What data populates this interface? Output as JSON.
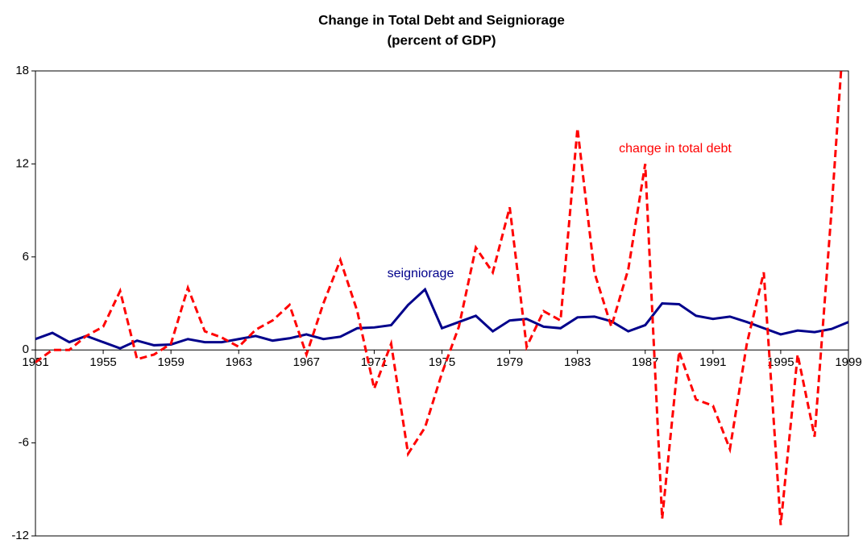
{
  "chart_data": {
    "type": "line",
    "title": "Change in Total Debt and Seigniorage",
    "subtitle": "(percent of GDP)",
    "x": [
      1951,
      1952,
      1953,
      1954,
      1955,
      1956,
      1957,
      1958,
      1959,
      1960,
      1961,
      1962,
      1963,
      1964,
      1965,
      1966,
      1967,
      1968,
      1969,
      1970,
      1971,
      1972,
      1973,
      1974,
      1975,
      1976,
      1977,
      1978,
      1979,
      1980,
      1981,
      1982,
      1983,
      1984,
      1985,
      1986,
      1987,
      1988,
      1989,
      1990,
      1991,
      1992,
      1993,
      1994,
      1995,
      1996,
      1997,
      1998,
      1999
    ],
    "series": [
      {
        "name": "seigniorage",
        "color": "#00008b",
        "dash": false,
        "values": [
          0.7,
          1.1,
          0.5,
          0.9,
          0.5,
          0.1,
          0.6,
          0.3,
          0.35,
          0.7,
          0.5,
          0.5,
          0.7,
          0.9,
          0.6,
          0.75,
          1.0,
          0.7,
          0.85,
          1.4,
          1.45,
          1.6,
          2.9,
          3.9,
          1.4,
          1.8,
          2.2,
          1.2,
          1.9,
          2.0,
          1.5,
          1.4,
          2.1,
          2.15,
          1.85,
          1.2,
          1.6,
          3.0,
          2.95,
          2.2,
          2.0,
          2.15,
          1.8,
          1.4,
          1.0,
          1.25,
          1.15,
          1.35,
          1.8
        ]
      },
      {
        "name": "change in total debt",
        "color": "#ff0000",
        "dash": true,
        "values": [
          -0.8,
          0.0,
          0.0,
          0.9,
          1.5,
          3.8,
          -0.6,
          -0.3,
          0.4,
          4.0,
          1.2,
          0.8,
          0.2,
          1.3,
          1.9,
          2.9,
          -0.3,
          3.0,
          5.8,
          2.5,
          -2.5,
          0.4,
          -6.7,
          -5.0,
          -1.5,
          1.5,
          6.6,
          5.0,
          9.2,
          0.2,
          2.5,
          1.9,
          14.3,
          5.0,
          1.5,
          5.2,
          12.0,
          -10.9,
          -0.1,
          -3.2,
          -3.6,
          -6.4,
          0.4,
          5.0,
          -11.3,
          -0.3,
          -5.6,
          9.0,
          25.0
        ]
      }
    ],
    "xlim": [
      1951,
      1999
    ],
    "xticks": [
      1951,
      1955,
      1959,
      1963,
      1967,
      1971,
      1975,
      1979,
      1983,
      1987,
      1991,
      1995,
      1999
    ],
    "ylim": [
      -12,
      18
    ],
    "yticks": [
      -12,
      -6,
      0,
      6,
      12,
      18
    ],
    "grid": false
  }
}
